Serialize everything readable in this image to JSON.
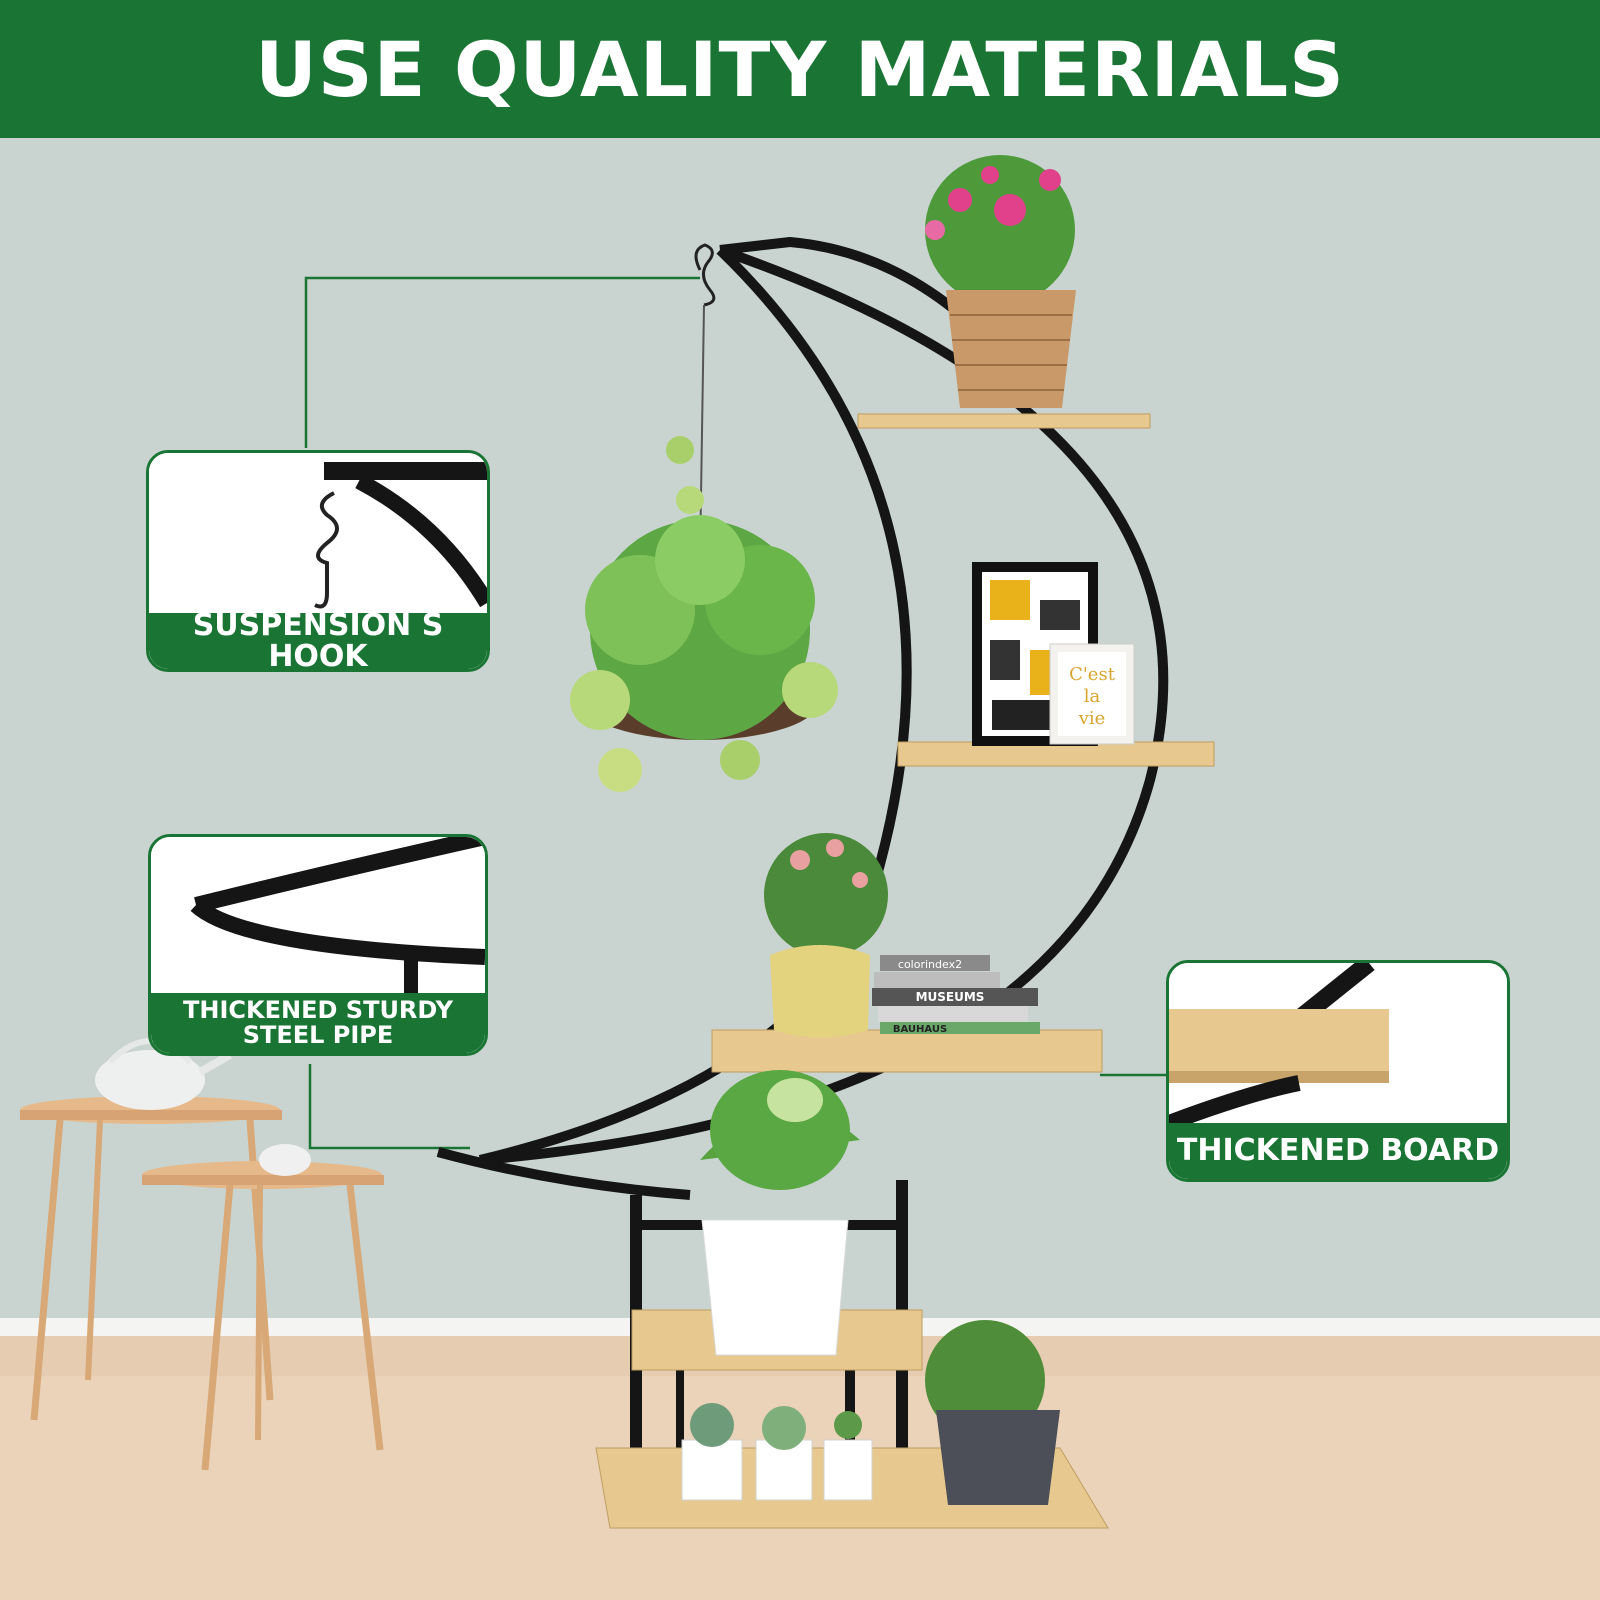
{
  "header": {
    "title": "USE QUALITY MATERIALS"
  },
  "callouts": {
    "hook": {
      "label": "SUSPENSION S HOOK"
    },
    "pipe": {
      "label_line1": "THICKENED STURDY",
      "label_line2": "STEEL PIPE"
    },
    "board": {
      "label": "THICKENED BOARD"
    }
  },
  "art": {
    "print_text_1": "C'est",
    "print_text_2": "la",
    "print_text_3": "vie",
    "book_1": "colorindex2",
    "book_2": "MUSEUMS",
    "book_3": "BAUHAUS"
  },
  "colors": {
    "brand_green": "#1a7535",
    "wall": "#c9d4d0",
    "floor": "#ead3b8",
    "steel": "#151515",
    "wood": "#e7c98f"
  }
}
